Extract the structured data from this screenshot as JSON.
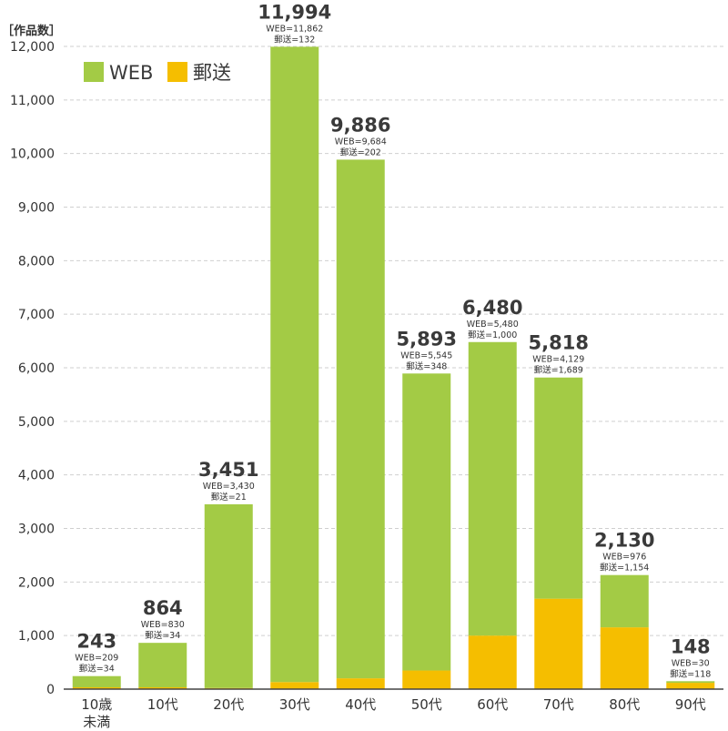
{
  "chart_data": {
    "type": "bar",
    "stacked": true,
    "unit_label": "［作品数］",
    "categories": [
      "10歳\n未満",
      "10代",
      "20代",
      "30代",
      "40代",
      "50代",
      "60代",
      "70代",
      "80代",
      "90代"
    ],
    "series": [
      {
        "name": "郵送",
        "color": "#f5be00",
        "values": [
          34,
          34,
          21,
          132,
          202,
          348,
          1000,
          1689,
          1154,
          118
        ]
      },
      {
        "name": "WEB",
        "color": "#a3cb45",
        "values": [
          209,
          830,
          3430,
          11862,
          9684,
          5545,
          5480,
          4129,
          976,
          30
        ]
      }
    ],
    "totals": [
      "243",
      "864",
      "3,451",
      "11,994",
      "9,886",
      "5,893",
      "6,480",
      "5,818",
      "2,130",
      "148"
    ],
    "web_labels": [
      "WEB=209",
      "WEB=830",
      "WEB=3,430",
      "WEB=11,862",
      "WEB=9,684",
      "WEB=5,545",
      "WEB=5,480",
      "WEB=4,129",
      "WEB=976",
      "WEB=30"
    ],
    "mail_labels": [
      "郵送=34",
      "郵送=34",
      "郵送=21",
      "郵送=132",
      "郵送=202",
      "郵送=348",
      "郵送=1,000",
      "郵送=1,689",
      "郵送=1,154",
      "郵送=118"
    ],
    "y_ticks": [
      "0",
      "1,000",
      "2,000",
      "3,000",
      "4,000",
      "5,000",
      "6,000",
      "7,000",
      "8,000",
      "9,000",
      "10,000",
      "11,000",
      "12,000"
    ],
    "ylim": [
      0,
      12000
    ],
    "grid": true,
    "legend": {
      "position": "top-left",
      "items": [
        {
          "label": "WEB",
          "color": "#a3cb45"
        },
        {
          "label": "郵送",
          "color": "#f5be00"
        }
      ]
    }
  }
}
